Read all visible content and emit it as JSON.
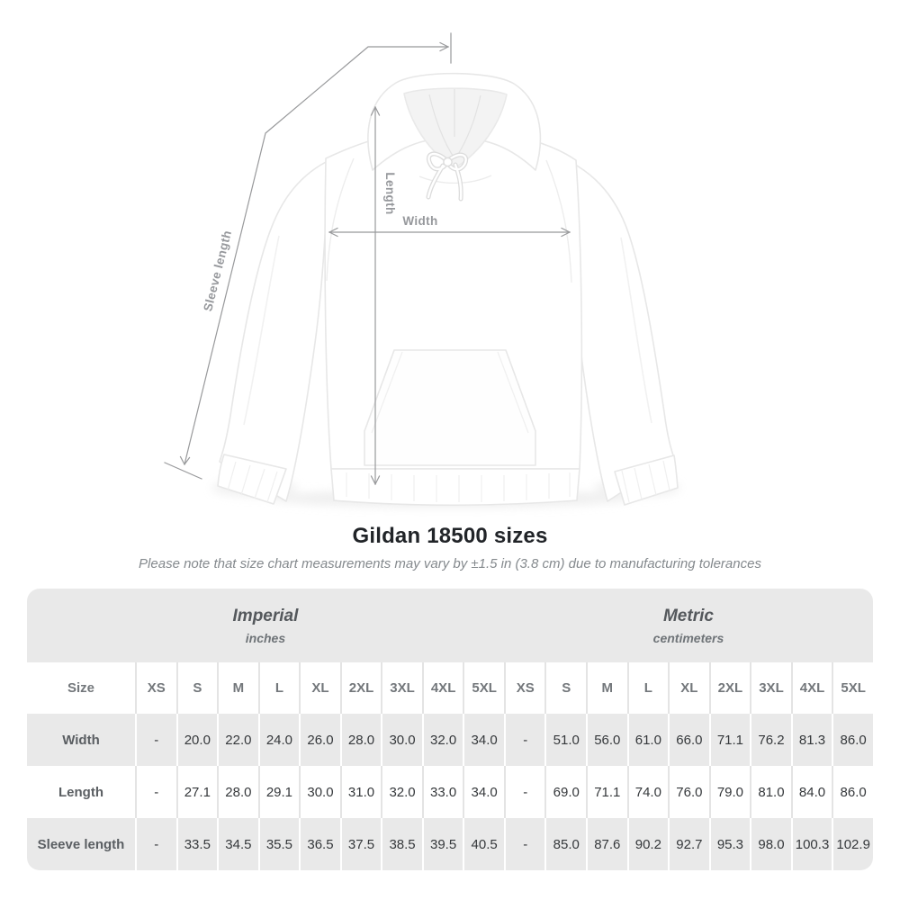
{
  "diagram": {
    "labels": {
      "width": "Width",
      "length": "Length",
      "sleeve_length": "Sleeve length"
    }
  },
  "header": {
    "title": "Gildan 18500 sizes",
    "subtitle": "Please note that size chart measurements may vary by ±1.5 in (3.8 cm) due to manufacturing tolerances"
  },
  "table": {
    "size_label": "Size",
    "groups": [
      {
        "label": "Imperial",
        "sublabel": "inches"
      },
      {
        "label": "Metric",
        "sublabel": "centimeters"
      }
    ],
    "sizes": [
      "XS",
      "S",
      "M",
      "L",
      "XL",
      "2XL",
      "3XL",
      "4XL",
      "5XL"
    ],
    "rows": [
      {
        "label": "Width",
        "imperial": [
          "-",
          "20.0",
          "22.0",
          "24.0",
          "26.0",
          "28.0",
          "30.0",
          "32.0",
          "34.0"
        ],
        "metric": [
          "-",
          "51.0",
          "56.0",
          "61.0",
          "66.0",
          "71.1",
          "76.2",
          "81.3",
          "86.0"
        ]
      },
      {
        "label": "Length",
        "imperial": [
          "-",
          "27.1",
          "28.0",
          "29.1",
          "30.0",
          "31.0",
          "32.0",
          "33.0",
          "34.0"
        ],
        "metric": [
          "-",
          "69.0",
          "71.1",
          "74.0",
          "76.0",
          "79.0",
          "81.0",
          "84.0",
          "86.0"
        ]
      },
      {
        "label": "Sleeve length",
        "imperial": [
          "-",
          "33.5",
          "34.5",
          "35.5",
          "36.5",
          "37.5",
          "38.5",
          "39.5",
          "40.5"
        ],
        "metric": [
          "-",
          "85.0",
          "87.6",
          "90.2",
          "92.7",
          "95.3",
          "98.0",
          "100.3",
          "102.9"
        ]
      }
    ]
  },
  "colors": {
    "table_band": "#e9e9e9",
    "separator_on_white": "#e4e4e4",
    "dimension_line": "#98999b",
    "dimension_label_text": "#96989c",
    "number_text": "#35383b",
    "heading_text": "#212428",
    "subtitle_text": "#84898d"
  }
}
